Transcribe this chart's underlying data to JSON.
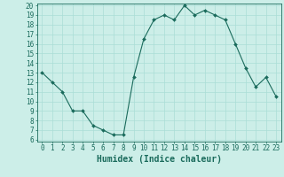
{
  "x": [
    0,
    1,
    2,
    3,
    4,
    5,
    6,
    7,
    8,
    9,
    10,
    11,
    12,
    13,
    14,
    15,
    16,
    17,
    18,
    19,
    20,
    21,
    22,
    23
  ],
  "y": [
    13,
    12,
    11,
    9,
    9,
    7.5,
    7,
    6.5,
    6.5,
    12.5,
    16.5,
    18.5,
    19,
    18.5,
    20,
    19,
    19.5,
    19,
    18.5,
    16,
    13.5,
    11.5,
    12.5,
    10.5
  ],
  "line_color": "#1a6b5c",
  "marker_color": "#1a6b5c",
  "bg_color": "#cceee8",
  "grid_color": "#aaddd6",
  "axis_color": "#1a6b5c",
  "tick_color": "#1a6b5c",
  "xlabel": "Humidex (Indice chaleur)",
  "ylim": [
    6,
    20
  ],
  "xlim": [
    -0.5,
    23.5
  ],
  "yticks": [
    6,
    7,
    8,
    9,
    10,
    11,
    12,
    13,
    14,
    15,
    16,
    17,
    18,
    19,
    20
  ],
  "xticks": [
    0,
    1,
    2,
    3,
    4,
    5,
    6,
    7,
    8,
    9,
    10,
    11,
    12,
    13,
    14,
    15,
    16,
    17,
    18,
    19,
    20,
    21,
    22,
    23
  ],
  "font_size": 5.5,
  "label_font_size": 7
}
